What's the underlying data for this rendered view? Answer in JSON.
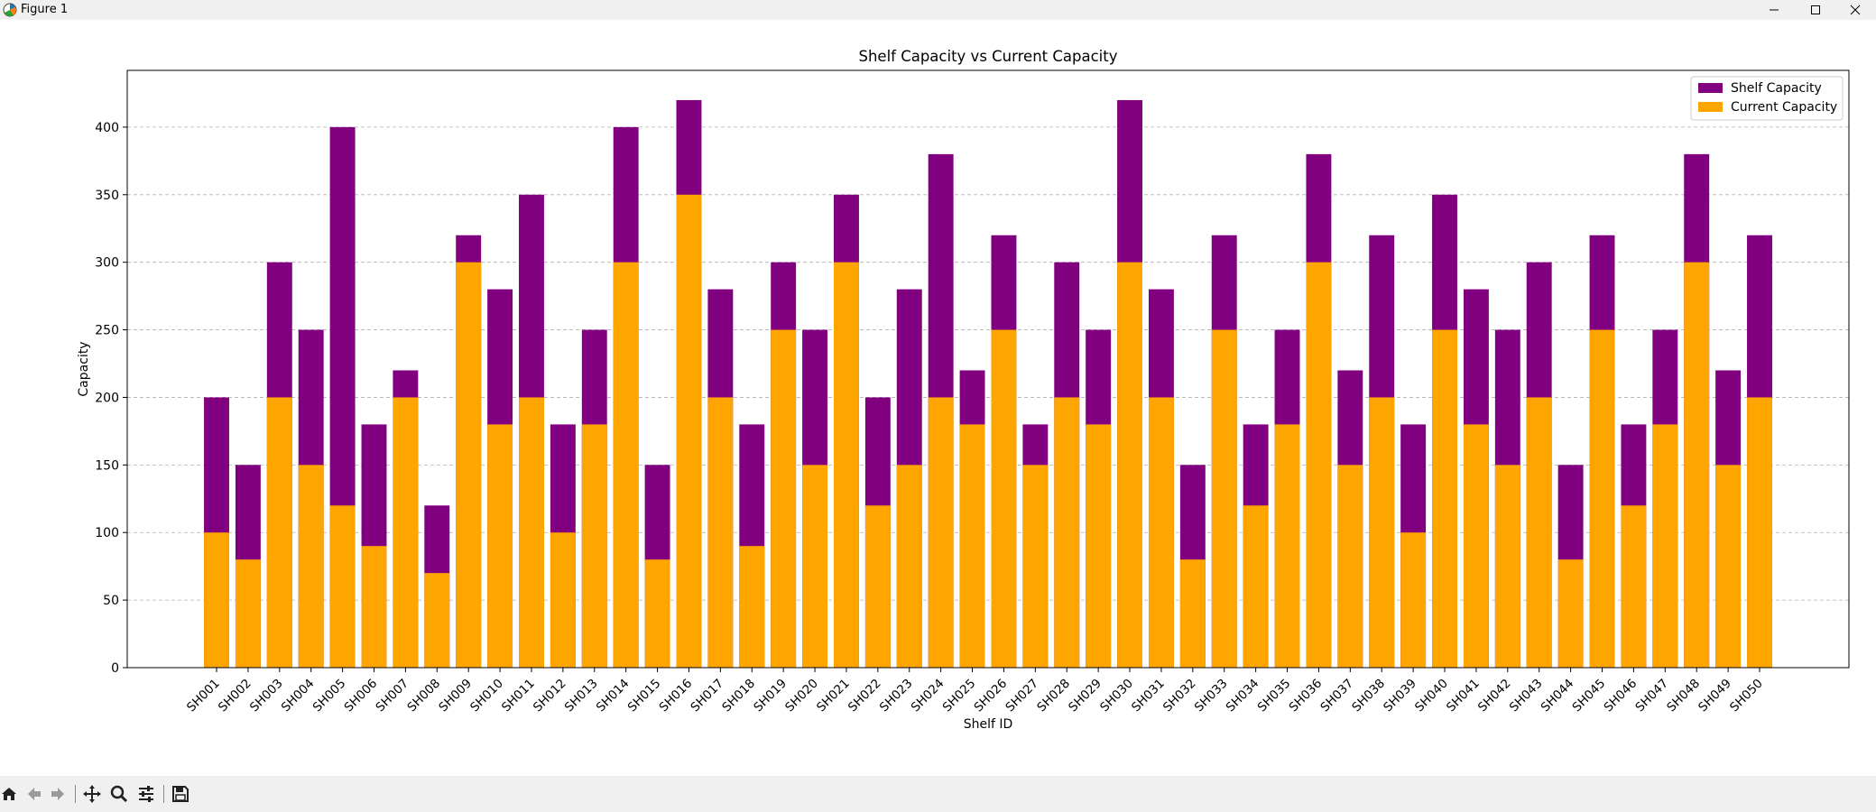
{
  "window": {
    "title": "Figure 1",
    "app_icon": "matplotlib-logo",
    "controls": [
      "minimize-icon",
      "maximize-icon",
      "close-icon"
    ]
  },
  "toolbar": {
    "buttons": [
      "home-icon",
      "back-icon",
      "forward-icon",
      "pan-icon",
      "zoom-icon",
      "configure-subplots-icon",
      "save-icon"
    ]
  },
  "colors": {
    "shelf_capacity": "#800080",
    "current_capacity": "#FFA500",
    "grid": "#b0b0b0"
  },
  "chart_data": {
    "type": "bar",
    "stacked": false,
    "overlaid": true,
    "title": "Shelf Capacity vs Current Capacity",
    "xlabel": "Shelf ID",
    "ylabel": "Capacity",
    "ylim": [
      0,
      442
    ],
    "yticks": [
      0,
      50,
      100,
      150,
      200,
      250,
      300,
      350,
      400
    ],
    "grid": "y-axis dashed",
    "legend_position": "top-right",
    "categories": [
      "SH001",
      "SH002",
      "SH003",
      "SH004",
      "SH005",
      "SH006",
      "SH007",
      "SH008",
      "SH009",
      "SH010",
      "SH011",
      "SH012",
      "SH013",
      "SH014",
      "SH015",
      "SH016",
      "SH017",
      "SH018",
      "SH019",
      "SH020",
      "SH021",
      "SH022",
      "SH023",
      "SH024",
      "SH025",
      "SH026",
      "SH027",
      "SH028",
      "SH029",
      "SH030",
      "SH031",
      "SH032",
      "SH033",
      "SH034",
      "SH035",
      "SH036",
      "SH037",
      "SH038",
      "SH039",
      "SH040",
      "SH041",
      "SH042",
      "SH043",
      "SH044",
      "SH045",
      "SH046",
      "SH047",
      "SH048",
      "SH049",
      "SH050"
    ],
    "series": [
      {
        "name": "Shelf Capacity",
        "color": "#800080",
        "values": [
          200,
          150,
          300,
          250,
          400,
          180,
          220,
          120,
          320,
          280,
          350,
          180,
          250,
          400,
          150,
          420,
          280,
          180,
          300,
          250,
          350,
          200,
          280,
          380,
          220,
          320,
          180,
          300,
          250,
          420,
          280,
          150,
          320,
          180,
          250,
          380,
          220,
          320,
          180,
          350,
          280,
          250,
          300,
          150,
          320,
          180,
          250,
          380,
          220,
          320
        ]
      },
      {
        "name": "Current Capacity",
        "color": "#FFA500",
        "values": [
          100,
          80,
          200,
          150,
          120,
          90,
          200,
          70,
          300,
          180,
          200,
          100,
          180,
          300,
          80,
          350,
          200,
          90,
          250,
          150,
          300,
          120,
          150,
          200,
          180,
          250,
          150,
          200,
          180,
          300,
          200,
          80,
          250,
          120,
          180,
          300,
          150,
          200,
          100,
          250,
          180,
          150,
          200,
          80,
          250,
          120,
          180,
          300,
          150,
          200
        ]
      }
    ]
  }
}
